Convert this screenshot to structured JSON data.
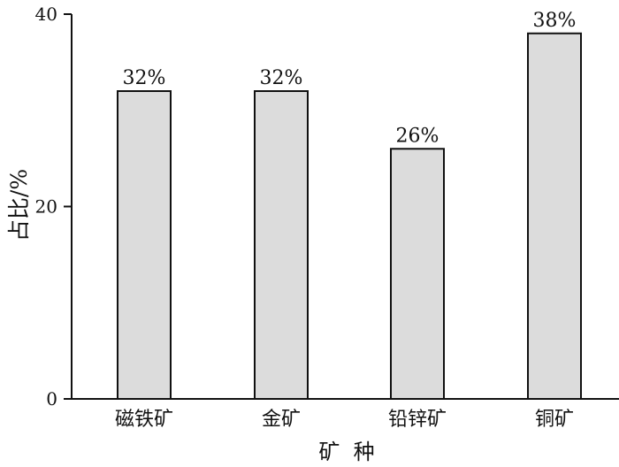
{
  "chart_data": {
    "type": "bar",
    "categories": [
      "磁铁矿",
      "金矿",
      "铅锌矿",
      "铜矿"
    ],
    "values": [
      32,
      32,
      26,
      38
    ],
    "value_labels": [
      "32%",
      "32%",
      "26%",
      "38%"
    ],
    "title": "",
    "xlabel": "矿  种",
    "ylabel": "占比/%",
    "ylim": [
      0,
      40
    ],
    "yticks": [
      "0",
      "20",
      "40"
    ],
    "grid": false,
    "legend": "none",
    "bar_color": "#dcdcdc",
    "bar_edge_color": "#111111"
  }
}
